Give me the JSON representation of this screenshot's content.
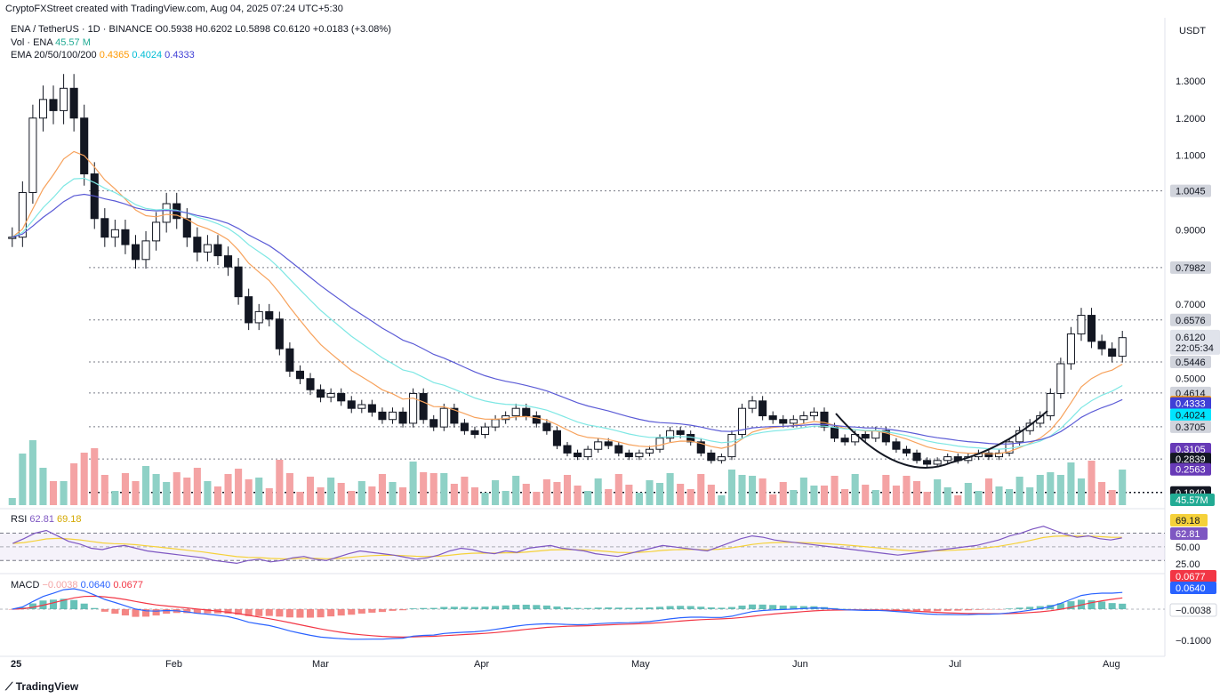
{
  "header": {
    "credit": "CryptoFXStreet created with TradingView.com, Aug 04, 2025 07:24 UTC+5:30",
    "symbol": "ENA / TetherUS · 1D · BINANCE",
    "ohlc": "O0.5938 H0.6202 L0.5898 C0.6120 +0.0183 (+3.08%)",
    "vol_label": "Vol · ENA",
    "vol_value": "45.57 M",
    "ema_label": "EMA 20/50/100/200",
    "ema_values": [
      "0.4365",
      "0.4024",
      "0.4333"
    ],
    "currency": "USDT"
  },
  "colors": {
    "up": "#131722",
    "down": "#131722",
    "vol_up": "#8fd1c6",
    "vol_down": "#f4a3a4",
    "ema20": "#f7a25c",
    "ema50": "#7ee7e4",
    "ema200": "#5b5bd6",
    "rsi": "#7e57c2",
    "rsi_ma": "#f5d13a",
    "macd": "#2962ff",
    "signal": "#f23645"
  },
  "chart_data": [
    {
      "type": "candlestick",
      "title": "",
      "x": [
        "25",
        "Feb",
        "Mar",
        "Apr",
        "May",
        "Jun",
        "Jul",
        "Aug"
      ],
      "ylim": [
        0.16,
        1.35
      ],
      "yticks": [
        "1.3000",
        "1.2000",
        "1.1000",
        "0.9000",
        "0.7000",
        "0.5000"
      ],
      "close_path": [
        0.88,
        1.0,
        1.2,
        1.25,
        1.22,
        1.28,
        1.2,
        1.05,
        0.93,
        0.88,
        0.9,
        0.86,
        0.82,
        0.87,
        0.92,
        0.97,
        0.93,
        0.88,
        0.84,
        0.86,
        0.83,
        0.8,
        0.72,
        0.65,
        0.68,
        0.66,
        0.58,
        0.52,
        0.5,
        0.47,
        0.45,
        0.46,
        0.44,
        0.42,
        0.43,
        0.41,
        0.39,
        0.41,
        0.38,
        0.46,
        0.39,
        0.37,
        0.42,
        0.38,
        0.36,
        0.35,
        0.37,
        0.39,
        0.4,
        0.42,
        0.4,
        0.38,
        0.36,
        0.32,
        0.3,
        0.29,
        0.31,
        0.33,
        0.32,
        0.3,
        0.29,
        0.3,
        0.31,
        0.34,
        0.36,
        0.35,
        0.33,
        0.3,
        0.28,
        0.29,
        0.35,
        0.42,
        0.44,
        0.4,
        0.39,
        0.38,
        0.39,
        0.4,
        0.41,
        0.37,
        0.34,
        0.33,
        0.35,
        0.34,
        0.36,
        0.33,
        0.31,
        0.3,
        0.28,
        0.27,
        0.28,
        0.29,
        0.28,
        0.29,
        0.3,
        0.29,
        0.3,
        0.33,
        0.36,
        0.38,
        0.4,
        0.46,
        0.54,
        0.62,
        0.67,
        0.6,
        0.58,
        0.56,
        0.61
      ],
      "price_levels": [
        {
          "label": "1.0045",
          "value": 1.0045,
          "style": "dotted"
        },
        {
          "label": "0.7982",
          "value": 0.7982,
          "style": "dotted"
        },
        {
          "label": "0.6576",
          "value": 0.6576,
          "style": "dotted"
        },
        {
          "label": "0.5446",
          "value": 0.5446,
          "style": "dotted"
        },
        {
          "label": "0.4614",
          "value": 0.4614,
          "style": "dotted"
        },
        {
          "label": "0.3705",
          "value": 0.3705,
          "style": "dotted"
        },
        {
          "label": "0.2839",
          "value": 0.2839,
          "style": "dotted"
        },
        {
          "label": "0.1940",
          "value": 0.194,
          "style": "dotted"
        }
      ],
      "tags": [
        {
          "label": "1.0045",
          "value": 1.0045,
          "bg": "#d1d4dc",
          "fg": "#131722"
        },
        {
          "label": "0.7982",
          "value": 0.7982,
          "bg": "#d1d4dc",
          "fg": "#131722"
        },
        {
          "label": "0.6576",
          "value": 0.6576,
          "bg": "#d1d4dc",
          "fg": "#131722"
        },
        {
          "label": "0.5446",
          "value": 0.5446,
          "bg": "#d1d4dc",
          "fg": "#131722"
        },
        {
          "label": "0.4614",
          "value": 0.4614,
          "bg": "#d1d4dc",
          "fg": "#131722"
        },
        {
          "label": "0.4365",
          "value": 0.4365,
          "bg": "#ff9800",
          "fg": "#ffffff"
        },
        {
          "label": "0.4333",
          "value": 0.4333,
          "bg": "#3f3fd6",
          "fg": "#ffffff"
        },
        {
          "label": "0.4024",
          "value": 0.4024,
          "bg": "#00e5ff",
          "fg": "#131722"
        },
        {
          "label": "0.3705",
          "value": 0.3705,
          "bg": "#d1d4dc",
          "fg": "#131722"
        },
        {
          "label": "0.3105",
          "value": 0.3105,
          "bg": "#673ab7",
          "fg": "#ffffff"
        },
        {
          "label": "0.2839",
          "value": 0.2839,
          "bg": "#131722",
          "fg": "#ffffff"
        },
        {
          "label": "0.2563",
          "value": 0.2563,
          "bg": "#673ab7",
          "fg": "#ffffff"
        },
        {
          "label": "0.1940",
          "value": 0.194,
          "bg": "#131722",
          "fg": "#ffffff"
        }
      ],
      "last_price": {
        "label": "0.6120",
        "countdown": "22:05:34",
        "value": 0.612
      },
      "volume_tag": "45.57M"
    },
    {
      "type": "line",
      "title": "RSI",
      "values_text": [
        "62.81",
        "69.18"
      ],
      "ylim": [
        20,
        85
      ],
      "yticks": [
        "50.00",
        "25.00"
      ],
      "rsi": [
        55,
        62,
        70,
        74,
        66,
        58,
        54,
        48,
        46,
        50,
        52,
        48,
        44,
        42,
        40,
        38,
        36,
        34,
        30,
        28,
        26,
        30,
        32,
        28,
        30,
        34,
        36,
        32,
        30,
        35,
        40,
        44,
        42,
        40,
        38,
        35,
        32,
        34,
        38,
        44,
        48,
        46,
        42,
        40,
        44,
        42,
        48,
        50,
        52,
        48,
        46,
        44,
        40,
        38,
        36,
        40,
        44,
        48,
        52,
        50,
        48,
        46,
        44,
        50,
        56,
        62,
        66,
        64,
        60,
        58,
        56,
        54,
        52,
        50,
        48,
        46,
        44,
        42,
        40,
        38,
        40,
        42,
        44,
        46,
        48,
        50,
        52,
        56,
        60,
        66,
        70,
        76,
        80,
        74,
        68,
        64,
        66,
        62,
        60,
        63
      ],
      "tags": [
        {
          "label": "69.18",
          "bg": "#f5d13a",
          "fg": "#131722"
        },
        {
          "label": "62.81",
          "bg": "#7e57c2",
          "fg": "#ffffff"
        }
      ]
    },
    {
      "type": "line",
      "title": "MACD",
      "values_text": [
        "−0.0038",
        "0.0640",
        "0.0677"
      ],
      "yticks": [
        "−0.1000"
      ],
      "tags": [
        {
          "label": "0.0677",
          "bg": "#f23645",
          "fg": "#ffffff"
        },
        {
          "label": "0.0640",
          "bg": "#2962ff",
          "fg": "#ffffff"
        },
        {
          "label": "−0.0038",
          "bg": "#ffffff",
          "fg": "#131722"
        }
      ]
    }
  ],
  "footer": {
    "brand": "TradingView"
  }
}
